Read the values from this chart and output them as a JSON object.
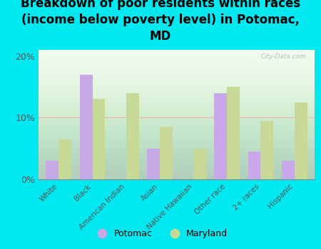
{
  "title": "Breakdown of poor residents within races\n(income below poverty level) in Potomac,\nMD",
  "categories": [
    "White",
    "Black",
    "American Indian",
    "Asian",
    "Native Hawaiian",
    "Other race",
    "2+ races",
    "Hispanic"
  ],
  "potomac": [
    3,
    17,
    0,
    5,
    0,
    14,
    4.5,
    3
  ],
  "maryland": [
    6.5,
    13,
    14,
    8.5,
    5,
    15,
    9.5,
    12.5
  ],
  "potomac_color": "#c9a8e8",
  "maryland_color": "#c8d896",
  "bg_color": "#00e8f0",
  "title_fontsize": 12,
  "yticks": [
    0,
    10,
    20
  ],
  "ylim": [
    0,
    21
  ],
  "watermark": "City-Data.com",
  "tick_label_color": "#555555",
  "grid_color": "#ffaaaa",
  "bar_width": 0.38
}
